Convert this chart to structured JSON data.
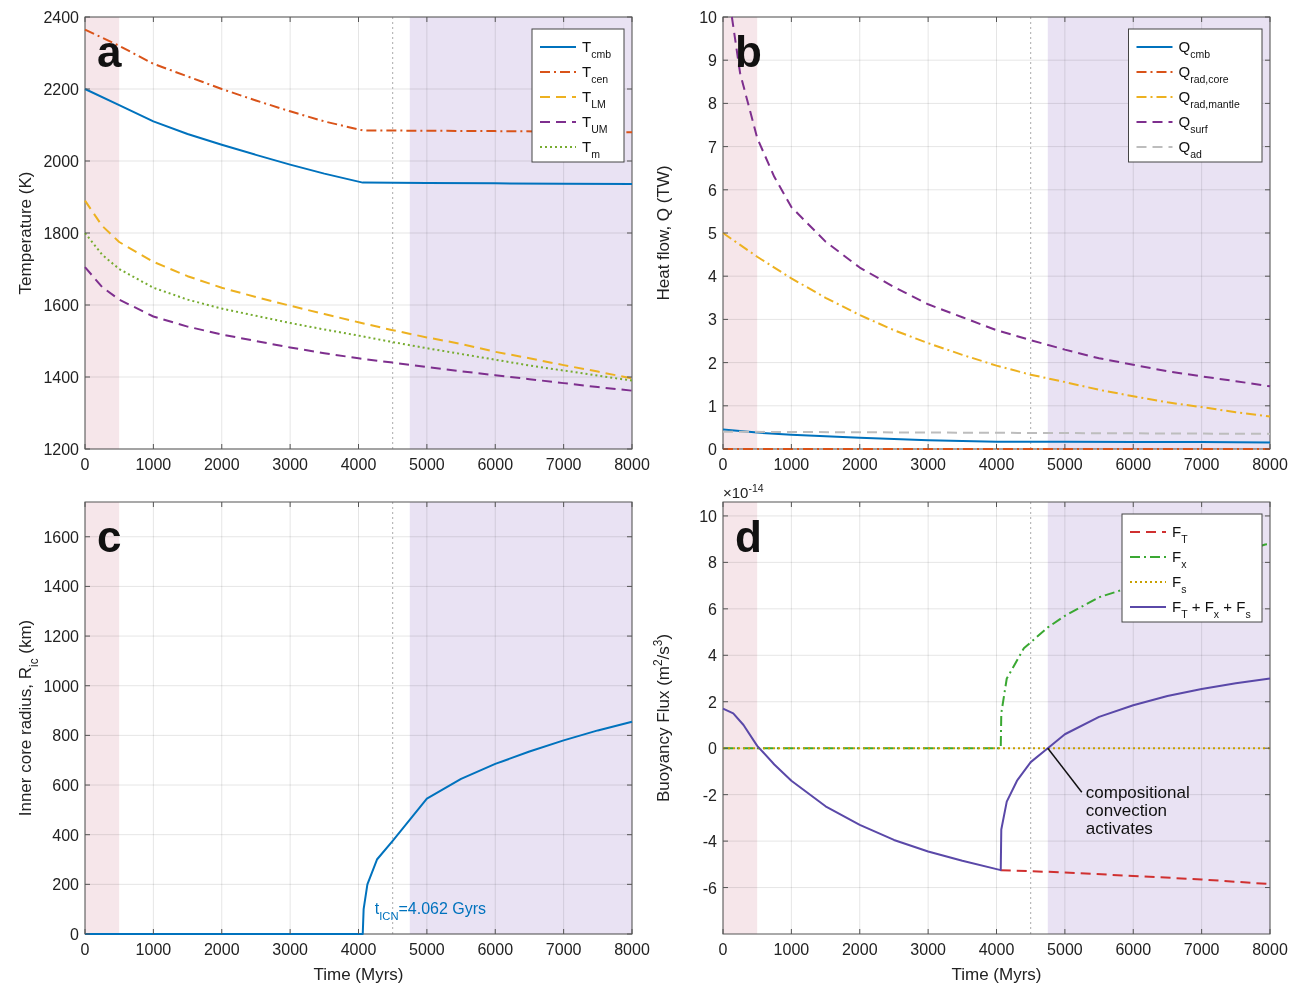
{
  "chart_data": [
    {
      "type": "line",
      "title": "a",
      "ylabel": "Temperature (K)",
      "xlim": [
        0,
        8000
      ],
      "xticks": [
        0,
        1000,
        2000,
        3000,
        4000,
        5000,
        6000,
        7000,
        8000
      ],
      "ylim": [
        1200,
        2400
      ],
      "yticks": [
        1200,
        1400,
        1600,
        1800,
        2000,
        2200,
        2400
      ],
      "grid": true,
      "legend": "top right",
      "bands": [
        {
          "axis": "x",
          "from": 0,
          "to": 500,
          "color": "#f6e6ea"
        },
        {
          "axis": "x",
          "from": 4750,
          "to": 8000,
          "color": "#e9e2f3"
        }
      ],
      "ref_lines": [
        {
          "axis": "x",
          "value": 4500,
          "color": "#aaaaaa",
          "line_style": "dotted"
        }
      ],
      "series": [
        {
          "name": "T$_{cmb}$",
          "color": "#0072bd",
          "line_style": "solid",
          "x": [
            0,
            500,
            1000,
            1500,
            2000,
            2500,
            3000,
            3500,
            4062,
            5000,
            6000,
            7000,
            8000
          ],
          "values": [
            2200,
            2155,
            2110,
            2075,
            2045,
            2017,
            1990,
            1965,
            1940,
            1939,
            1938,
            1937,
            1936
          ]
        },
        {
          "name": "T$_{cen}$",
          "color": "#d95319",
          "line_style": "dashdot",
          "x": [
            0,
            500,
            1000,
            1500,
            2000,
            2500,
            3000,
            3500,
            4062,
            5000,
            6000,
            8000
          ],
          "values": [
            2365,
            2320,
            2270,
            2235,
            2200,
            2168,
            2138,
            2110,
            2085,
            2084,
            2083,
            2080
          ]
        },
        {
          "name": "T$_{LM}$",
          "color": "#edb120",
          "line_style": "dashed",
          "x": [
            0,
            250,
            500,
            1000,
            1500,
            2000,
            2500,
            3000,
            3500,
            4000,
            4500,
            5000,
            5500,
            6000,
            6500,
            7000,
            7500,
            8000
          ],
          "values": [
            1890,
            1820,
            1775,
            1720,
            1680,
            1648,
            1622,
            1598,
            1575,
            1552,
            1530,
            1510,
            1492,
            1470,
            1452,
            1433,
            1415,
            1396
          ]
        },
        {
          "name": "T$_{UM}$",
          "color": "#7e2f8e",
          "line_style": "dashed",
          "x": [
            0,
            250,
            500,
            1000,
            1500,
            2000,
            2500,
            3000,
            3500,
            4000,
            4500,
            5000,
            5500,
            6000,
            6500,
            7000,
            7500,
            8000
          ],
          "values": [
            1705,
            1650,
            1615,
            1568,
            1540,
            1518,
            1500,
            1482,
            1466,
            1452,
            1440,
            1428,
            1416,
            1405,
            1394,
            1383,
            1372,
            1362
          ]
        },
        {
          "name": "T$_{m}$",
          "color": "#77ac30",
          "line_style": "dotted",
          "x": [
            0,
            250,
            500,
            1000,
            1500,
            2000,
            2500,
            3000,
            3500,
            4000,
            4500,
            5000,
            5500,
            6000,
            6500,
            7000,
            7500,
            8000
          ],
          "values": [
            1800,
            1740,
            1700,
            1648,
            1615,
            1590,
            1570,
            1550,
            1532,
            1515,
            1497,
            1480,
            1464,
            1448,
            1432,
            1418,
            1404,
            1390
          ]
        }
      ]
    },
    {
      "type": "line",
      "title": "b",
      "ylabel": "Heat flow, Q (TW)",
      "xlim": [
        0,
        8000
      ],
      "xticks": [
        0,
        1000,
        2000,
        3000,
        4000,
        5000,
        6000,
        7000,
        8000
      ],
      "ylim": [
        0,
        10
      ],
      "yticks": [
        0,
        1,
        2,
        3,
        4,
        5,
        6,
        7,
        8,
        9,
        10
      ],
      "grid": true,
      "legend": "top right",
      "bands": [
        {
          "axis": "x",
          "from": 0,
          "to": 500,
          "color": "#f6e6ea"
        },
        {
          "axis": "x",
          "from": 4750,
          "to": 8000,
          "color": "#e9e2f3"
        }
      ],
      "ref_lines": [
        {
          "axis": "x",
          "value": 4500,
          "color": "#aaaaaa",
          "line_style": "dotted"
        }
      ],
      "series": [
        {
          "name": "Q$_{cmb}$",
          "color": "#0072bd",
          "line_style": "solid",
          "x": [
            0,
            500,
            1000,
            2000,
            3000,
            4000,
            5000,
            6000,
            7000,
            8000
          ],
          "values": [
            0.45,
            0.38,
            0.33,
            0.26,
            0.2,
            0.17,
            0.17,
            0.16,
            0.16,
            0.15
          ]
        },
        {
          "name": "Q$_{rad,core}$",
          "color": "#d95319",
          "line_style": "dashdot",
          "x": [
            0,
            8000
          ],
          "values": [
            0,
            0
          ]
        },
        {
          "name": "Q$_{rad,mantle}$",
          "color": "#edb120",
          "line_style": "dashdot",
          "x": [
            0,
            500,
            1000,
            1500,
            2000,
            2500,
            3000,
            3500,
            4000,
            4500,
            5000,
            5500,
            6000,
            6500,
            7000,
            7500,
            8000
          ],
          "values": [
            5.0,
            4.45,
            3.95,
            3.5,
            3.1,
            2.75,
            2.45,
            2.18,
            1.93,
            1.72,
            1.55,
            1.37,
            1.22,
            1.08,
            0.97,
            0.85,
            0.75
          ]
        },
        {
          "name": "Q$_{surf}$",
          "color": "#7e2f8e",
          "line_style": "dashed",
          "x": [
            130,
            250,
            500,
            750,
            1000,
            1500,
            2000,
            2500,
            3000,
            3500,
            4000,
            4500,
            5000,
            5500,
            6000,
            6500,
            7000,
            7500,
            8000
          ],
          "values": [
            10,
            8.7,
            7.2,
            6.3,
            5.6,
            4.8,
            4.2,
            3.75,
            3.35,
            3.05,
            2.75,
            2.52,
            2.3,
            2.1,
            1.95,
            1.8,
            1.68,
            1.57,
            1.45
          ]
        },
        {
          "name": "Q$_{ad}$",
          "color": "#bdbdbd",
          "line_style": "dashed",
          "x": [
            0,
            8000
          ],
          "values": [
            0.4,
            0.35
          ]
        }
      ]
    },
    {
      "type": "line",
      "title": "c",
      "xlabel": "Time (Myrs)",
      "ylabel": "Inner core radius, R$_{ic}$ (km)",
      "xlim": [
        0,
        8000
      ],
      "xticks": [
        0,
        1000,
        2000,
        3000,
        4000,
        5000,
        6000,
        7000,
        8000
      ],
      "ylim": [
        0,
        1740
      ],
      "yticks": [
        0,
        200,
        400,
        600,
        800,
        1000,
        1200,
        1400,
        1600
      ],
      "grid": true,
      "bands": [
        {
          "axis": "x",
          "from": 0,
          "to": 500,
          "color": "#f6e6ea"
        },
        {
          "axis": "x",
          "from": 4750,
          "to": 8000,
          "color": "#e9e2f3"
        }
      ],
      "ref_lines": [
        {
          "axis": "x",
          "value": 4500,
          "color": "#aaaaaa",
          "line_style": "dotted"
        }
      ],
      "annotations": [
        {
          "text": "t$_{ICN}$=4.062 Gyrs",
          "x": 4062,
          "y": 0
        }
      ],
      "series": [
        {
          "color": "#0072bd",
          "line_style": "solid",
          "x": [
            0,
            4062,
            4075,
            4130,
            4270,
            4500,
            5000,
            5500,
            6000,
            6500,
            7000,
            7500,
            8000
          ],
          "values": [
            0,
            0,
            100,
            200,
            300,
            375,
            545,
            625,
            685,
            735,
            780,
            820,
            855
          ]
        }
      ]
    },
    {
      "type": "line",
      "title": "d",
      "xlabel": "Time (Myrs)",
      "ylabel": "Buoyancy Flux (m$^{2}$/s$^{3}$)",
      "xlim": [
        0,
        8000
      ],
      "xticks": [
        0,
        1000,
        2000,
        3000,
        4000,
        5000,
        6000,
        7000,
        8000
      ],
      "ylim": [
        -8,
        10.6
      ],
      "yticks": [
        -6,
        -4,
        -2,
        0,
        2,
        4,
        6,
        8,
        10
      ],
      "grid": true,
      "legend": "top right",
      "bands": [
        {
          "axis": "x",
          "from": 0,
          "to": 500,
          "color": "#f6e6ea"
        },
        {
          "axis": "x",
          "from": 4750,
          "to": 8000,
          "color": "#e9e2f3"
        }
      ],
      "ref_lines": [
        {
          "axis": "x",
          "value": 4500,
          "color": "#aaaaaa",
          "line_style": "dotted"
        }
      ],
      "annotations": [
        "×10$^{-14}$",
        {
          "text": "compositional convection activates",
          "x": 4750,
          "y": 0
        }
      ],
      "series": [
        {
          "name": "F$_{T}$",
          "color": "#d03030",
          "line_style": "dashed",
          "x": [
            4062,
            5000,
            6000,
            7000,
            8000
          ],
          "values": [
            -5.25,
            -5.35,
            -5.5,
            -5.65,
            -5.85
          ]
        },
        {
          "name": "F$_{x}$",
          "color": "#3aa832",
          "line_style": "dashdot",
          "x": [
            0,
            4062,
            4070,
            4150,
            4400,
            4750,
            5000,
            5500,
            7930,
            8000
          ],
          "values": [
            0,
            0,
            1.5,
            3,
            4.3,
            5.2,
            5.7,
            6.5,
            8.77,
            8.8
          ]
        },
        {
          "name": "F$_{s}$",
          "color": "#c8a000",
          "line_style": "dotted",
          "x": [
            0,
            8000
          ],
          "values": [
            0,
            0
          ]
        },
        {
          "name": "F$_{T}$ + F$_{x}$ + F$_{s}$",
          "color": "#5a48a8",
          "line_style": "solid",
          "x": [
            0,
            150,
            300,
            500,
            750,
            1000,
            1500,
            2000,
            2500,
            3000,
            3500,
            4062,
            4070,
            4150,
            4300,
            4500,
            4750,
            5000,
            5500,
            6000,
            6500,
            7000,
            7500,
            8000
          ],
          "values": [
            1.7,
            1.5,
            1.0,
            0.1,
            -0.7,
            -1.4,
            -2.5,
            -3.3,
            -3.95,
            -4.45,
            -4.85,
            -5.25,
            -3.5,
            -2.3,
            -1.4,
            -0.6,
            0,
            0.6,
            1.35,
            1.85,
            2.25,
            2.55,
            2.8,
            3.0
          ]
        }
      ]
    }
  ]
}
